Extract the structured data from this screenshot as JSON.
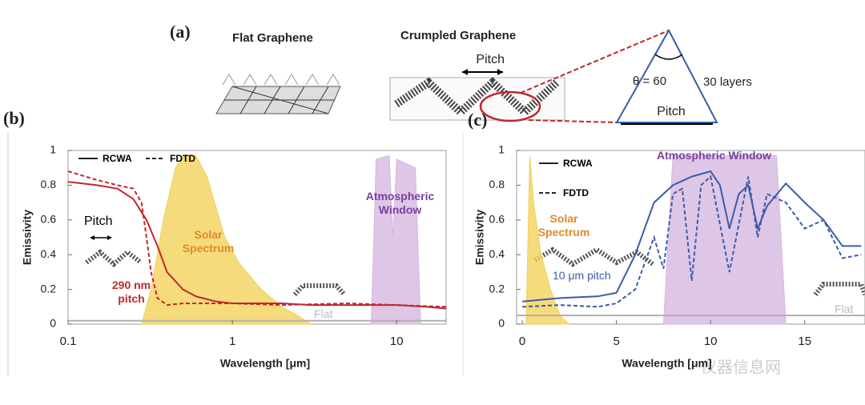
{
  "panel_a": {
    "label": "(a)",
    "flat_title": "Flat Graphene",
    "crumpled_title": "Crumpled Graphene",
    "pitch_top": "Pitch",
    "angle": "θ = 60",
    "layers": "30 layers",
    "pitch_triangle": "Pitch"
  },
  "watermark": "仪器信息网",
  "chart_data": [
    {
      "type": "line",
      "panel": "(b)",
      "xscale": "log",
      "xlabel": "Wavelength [μm]",
      "ylabel": "Emissivity",
      "xlim": [
        0.1,
        20
      ],
      "xticks": [
        0.1,
        1,
        10
      ],
      "ylim": [
        0,
        1
      ],
      "yticks": [
        0,
        0.2,
        0.4,
        0.6,
        0.8,
        1
      ],
      "series": [
        {
          "name": "Solar Spectrum",
          "color": "#f2d25a",
          "style": "area",
          "legend": false,
          "x": [
            0.28,
            0.32,
            0.38,
            0.45,
            0.5,
            0.6,
            0.7,
            0.9,
            1.1,
            1.5,
            2,
            2.5,
            3
          ],
          "values": [
            0,
            0.2,
            0.6,
            0.9,
            0.97,
            0.97,
            0.85,
            0.5,
            0.35,
            0.2,
            0.1,
            0.05,
            0
          ]
        },
        {
          "name": "Atmospheric Window",
          "color": "#d6b8e0",
          "style": "area",
          "legend": false,
          "x": [
            7,
            7.5,
            9,
            9.5,
            10,
            13,
            14
          ],
          "values": [
            0,
            0.95,
            0.97,
            0.5,
            0.95,
            0.9,
            0
          ]
        },
        {
          "name": "Flat",
          "color": "#b0b0b0",
          "style": "solid",
          "legend": false,
          "x": [
            0.1,
            20
          ],
          "values": [
            0.02,
            0.02
          ]
        },
        {
          "name": "RCWA",
          "color": "#c0272d",
          "style": "solid",
          "legend": true,
          "x": [
            0.1,
            0.15,
            0.2,
            0.25,
            0.3,
            0.35,
            0.4,
            0.5,
            0.6,
            0.8,
            1,
            2,
            3,
            5,
            10,
            15,
            20
          ],
          "values": [
            0.82,
            0.8,
            0.78,
            0.72,
            0.6,
            0.45,
            0.3,
            0.2,
            0.16,
            0.13,
            0.12,
            0.12,
            0.11,
            0.11,
            0.11,
            0.1,
            0.09
          ]
        },
        {
          "name": "FDTD",
          "color": "#c0272d",
          "style": "dashed",
          "legend": true,
          "x": [
            0.1,
            0.15,
            0.2,
            0.25,
            0.28,
            0.3,
            0.32,
            0.35,
            0.4,
            0.5,
            0.7,
            1,
            2,
            5,
            10,
            20
          ],
          "values": [
            0.88,
            0.83,
            0.8,
            0.78,
            0.7,
            0.5,
            0.3,
            0.15,
            0.11,
            0.12,
            0.12,
            0.12,
            0.11,
            0.12,
            0.11,
            0.1
          ]
        }
      ],
      "annotations": [
        "Pitch",
        "290 nm pitch"
      ]
    },
    {
      "type": "line",
      "panel": "(c)",
      "xscale": "linear",
      "xlabel": "Wavelength [μm]",
      "ylabel": "Emissivity",
      "xlim": [
        -0.3,
        18.2
      ],
      "xticks": [
        0,
        5,
        10,
        15
      ],
      "ylim": [
        0,
        1
      ],
      "yticks": [
        0,
        0.2,
        0.4,
        0.6,
        0.8,
        1
      ],
      "series": [
        {
          "name": "Solar Spectrum",
          "color": "#f2d25a",
          "style": "area",
          "legend": false,
          "x": [
            0.2,
            0.4,
            0.6,
            1,
            1.5,
            2,
            2.5
          ],
          "values": [
            0,
            0.97,
            0.7,
            0.4,
            0.2,
            0.05,
            0
          ]
        },
        {
          "name": "Atmospheric Window",
          "color": "#d6b8e0",
          "style": "area",
          "legend": false,
          "x": [
            7.5,
            8,
            13.5,
            14
          ],
          "values": [
            0,
            0.97,
            0.97,
            0
          ]
        },
        {
          "name": "Flat",
          "color": "#b0b0b0",
          "style": "solid",
          "legend": false,
          "x": [
            -0.3,
            18.2
          ],
          "values": [
            0.05,
            0.05
          ]
        },
        {
          "name": "RCWA",
          "color": "#3b5ba8",
          "style": "solid",
          "legend": true,
          "x": [
            0,
            2,
            4,
            5,
            6,
            7,
            8,
            9,
            10,
            10.5,
            11,
            11.5,
            12,
            12.5,
            13,
            14,
            15,
            16,
            17,
            18
          ],
          "values": [
            0.13,
            0.15,
            0.16,
            0.18,
            0.4,
            0.7,
            0.8,
            0.85,
            0.88,
            0.8,
            0.55,
            0.75,
            0.8,
            0.55,
            0.68,
            0.81,
            0.7,
            0.6,
            0.45,
            0.45
          ]
        },
        {
          "name": "FDTD",
          "color": "#3b5ba8",
          "style": "dashed",
          "legend": true,
          "x": [
            0,
            2,
            4,
            5,
            6,
            7,
            7.5,
            8,
            8.5,
            9,
            9.5,
            10,
            11,
            12,
            12.5,
            13,
            14,
            15,
            16,
            17,
            18
          ],
          "values": [
            0.1,
            0.11,
            0.1,
            0.12,
            0.2,
            0.5,
            0.32,
            0.75,
            0.78,
            0.25,
            0.8,
            0.85,
            0.3,
            0.85,
            0.5,
            0.75,
            0.7,
            0.55,
            0.6,
            0.38,
            0.4
          ]
        }
      ],
      "annotations": [
        "10 μm pitch"
      ]
    }
  ]
}
